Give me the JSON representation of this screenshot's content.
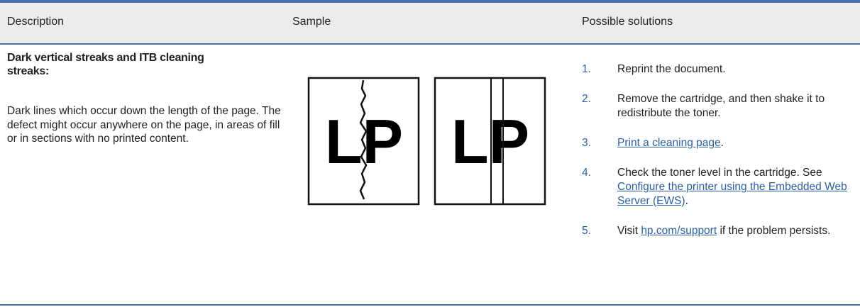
{
  "table": {
    "headers": [
      "Description",
      "Sample",
      "Possible solutions"
    ],
    "row": {
      "title": "Dark vertical streaks and ITB cleaning streaks:",
      "description": "Dark lines which occur down the length of the page. The defect might occur anywhere on the page, in areas of fill or in sections with no printed content.",
      "samples": [
        {
          "label": "LP"
        },
        {
          "label": "LP"
        }
      ],
      "solutions": [
        {
          "number": "1.",
          "parts": [
            {
              "text": "Reprint the document."
            }
          ]
        },
        {
          "number": "2.",
          "parts": [
            {
              "text": "Remove the cartridge, and then shake it to redistribute the toner."
            }
          ]
        },
        {
          "number": "3.",
          "parts": [
            {
              "link": "Print a cleaning page"
            },
            {
              "text": "."
            }
          ]
        },
        {
          "number": "4.",
          "parts": [
            {
              "text": "Check the toner level in the cartridge. See "
            },
            {
              "link": "Configure the printer using the Embedded Web Server (EWS)"
            },
            {
              "text": "."
            }
          ]
        },
        {
          "number": "5.",
          "parts": [
            {
              "text": "Visit "
            },
            {
              "link": "hp.com/support"
            },
            {
              "text": " if the problem persists."
            }
          ]
        }
      ]
    }
  }
}
